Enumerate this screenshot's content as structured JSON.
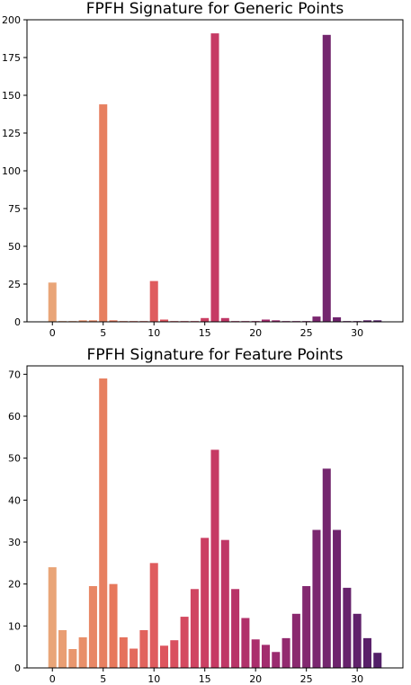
{
  "chart_data": [
    {
      "type": "bar",
      "title": "FPFH Signature for Generic Points",
      "xlabel": "",
      "ylabel": "",
      "x": [
        0,
        1,
        2,
        3,
        4,
        5,
        6,
        7,
        8,
        9,
        10,
        11,
        12,
        13,
        14,
        15,
        16,
        17,
        18,
        19,
        20,
        21,
        22,
        23,
        24,
        25,
        26,
        27,
        28,
        29,
        30,
        31,
        32
      ],
      "values": [
        26,
        0.5,
        0.5,
        1,
        1,
        144,
        1,
        0.5,
        0.5,
        0.5,
        27,
        1.5,
        0.5,
        0.5,
        0.5,
        2.5,
        191,
        2.5,
        0.5,
        0.5,
        0.5,
        1.5,
        1,
        0.5,
        0.5,
        0.5,
        3.5,
        190,
        3,
        0.5,
        0.5,
        1,
        1
      ],
      "xlim": [
        -2.5,
        34.5
      ],
      "ylim": [
        0,
        200
      ],
      "xticks": [
        0,
        5,
        10,
        15,
        20,
        25,
        30
      ],
      "yticks": [
        0,
        25,
        50,
        75,
        100,
        125,
        150,
        175,
        200
      ],
      "grid": false,
      "colormap": "magma-like"
    },
    {
      "type": "bar",
      "title": "FPFH Signature for Feature Points",
      "xlabel": "",
      "ylabel": "",
      "x": [
        0,
        1,
        2,
        3,
        4,
        5,
        6,
        7,
        8,
        9,
        10,
        11,
        12,
        13,
        14,
        15,
        16,
        17,
        18,
        19,
        20,
        21,
        22,
        23,
        24,
        25,
        26,
        27,
        28,
        29,
        30,
        31,
        32
      ],
      "values": [
        24,
        9,
        4.5,
        7.3,
        19.5,
        69,
        20,
        7.3,
        4.6,
        9,
        25,
        5.3,
        6.6,
        12.2,
        18.8,
        31,
        52,
        30.5,
        18.8,
        11.9,
        6.8,
        5.5,
        3.8,
        7.1,
        12.9,
        19.5,
        32.9,
        47.5,
        32.9,
        19.1,
        12.9,
        7.1,
        3.6
      ],
      "xlim": [
        -2.5,
        34.5
      ],
      "ylim": [
        0,
        72
      ],
      "xticks": [
        0,
        5,
        10,
        15,
        20,
        25,
        30
      ],
      "yticks": [
        0,
        10,
        20,
        30,
        40,
        50,
        60,
        70
      ],
      "grid": false,
      "colormap": "magma-like"
    }
  ]
}
